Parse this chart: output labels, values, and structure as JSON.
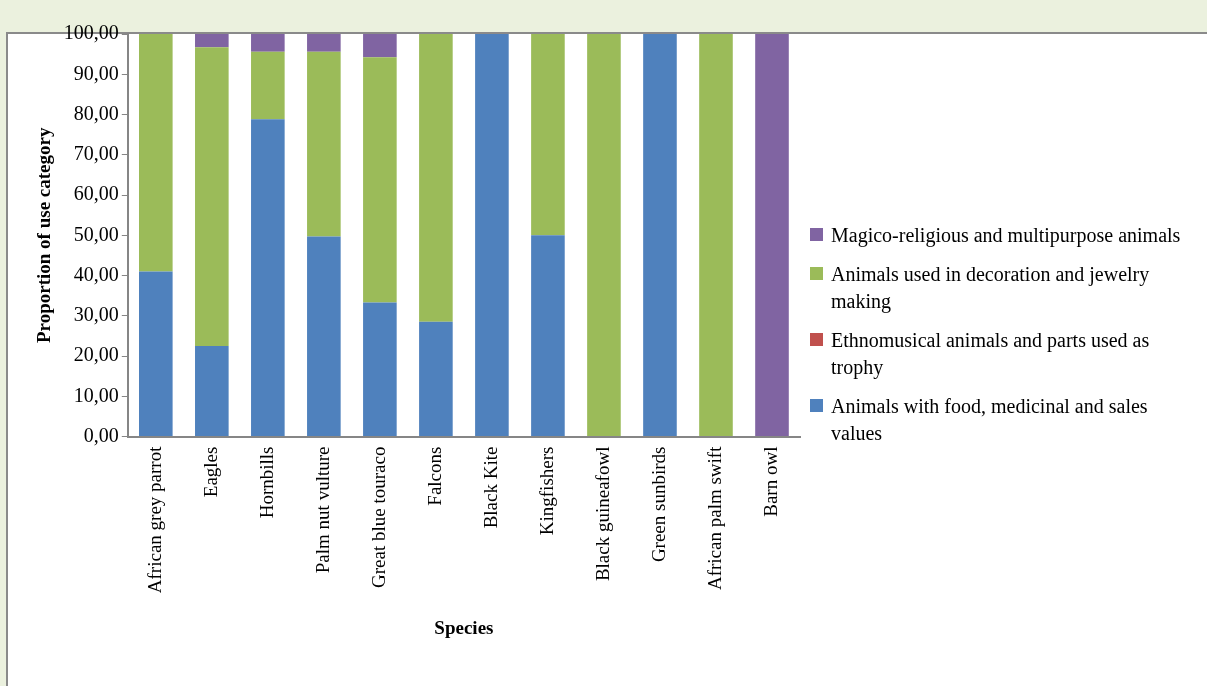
{
  "chart_data": {
    "type": "bar",
    "stacked": true,
    "xlabel": "Species",
    "ylabel": "Proportion of use category",
    "categories": [
      "African grey parrot",
      "Eagles",
      "Hornbills",
      "Palm nut vulture",
      "Great blue touraco",
      "Falcons",
      "Black Kite",
      "Kingfishers",
      "Black guineafowl",
      "Green sunbirds",
      "African palm swift",
      "Barn owl"
    ],
    "series": [
      {
        "name": "Animals with food, medicinal and sales values",
        "color": "#4f81bd",
        "values": [
          41.0,
          22.5,
          78.8,
          49.7,
          33.3,
          28.5,
          100,
          50,
          0,
          100,
          0,
          0
        ]
      },
      {
        "name": "Ethnomusical animals and parts used as trophy",
        "color": "#c0504d",
        "values": [
          0,
          0,
          0,
          0,
          0,
          0,
          0,
          0,
          0,
          0,
          0,
          0
        ]
      },
      {
        "name": "Animals used in decoration and jewelry making",
        "color": "#9bbb59",
        "values": [
          59.0,
          74.2,
          16.8,
          45.9,
          60.9,
          71.5,
          0,
          50,
          100,
          0,
          100,
          0
        ]
      },
      {
        "name": "Magico-religious and multipurpose animals",
        "color": "#8064a2",
        "values": [
          0,
          3.3,
          4.4,
          4.4,
          5.8,
          0,
          0,
          0,
          0,
          0,
          0,
          100
        ]
      }
    ],
    "ylim": [
      0,
      100
    ],
    "yticks": [
      {
        "value": 0,
        "label": "0,00"
      },
      {
        "value": 10,
        "label": "10,00"
      },
      {
        "value": 20,
        "label": "20,00"
      },
      {
        "value": 30,
        "label": "30,00"
      },
      {
        "value": 40,
        "label": "40,00"
      },
      {
        "value": 50,
        "label": "50,00"
      },
      {
        "value": 60,
        "label": "60,00"
      },
      {
        "value": 70,
        "label": "70,00"
      },
      {
        "value": 80,
        "label": "80,00"
      },
      {
        "value": 90,
        "label": "90,00"
      },
      {
        "value": 100,
        "label": "100,00"
      }
    ],
    "grid": false,
    "legend": "right"
  }
}
